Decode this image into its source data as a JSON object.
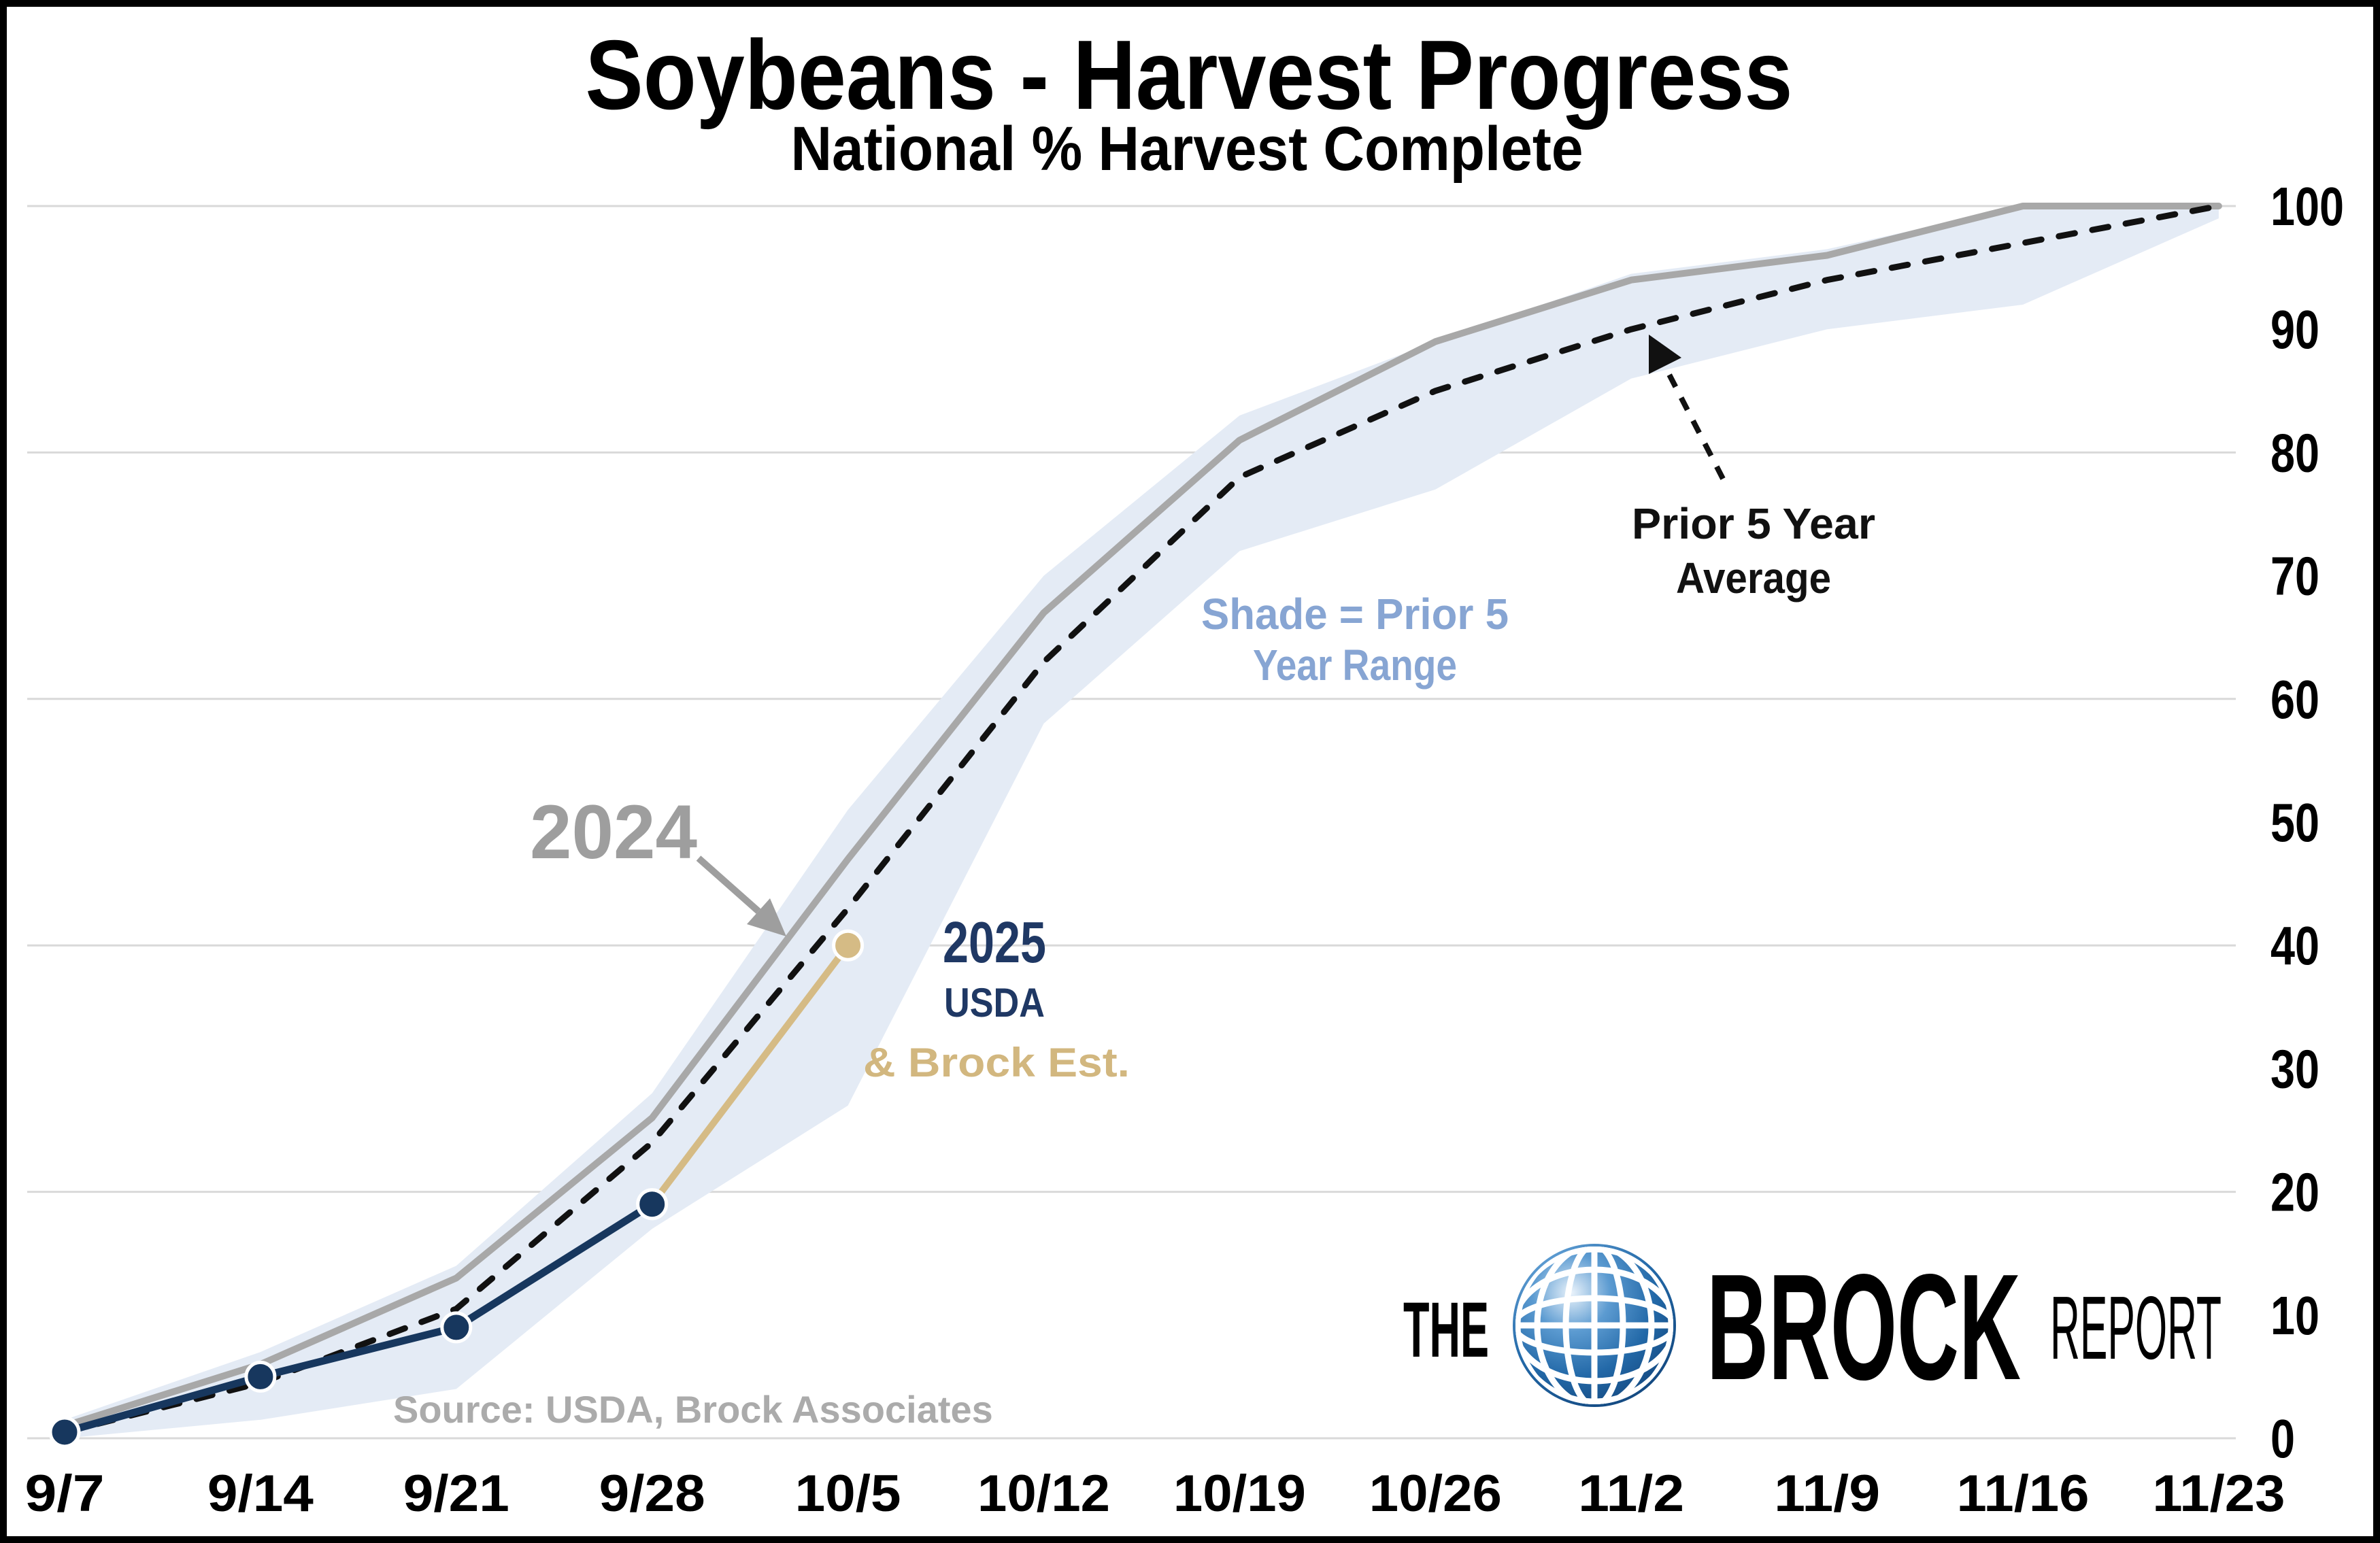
{
  "page": {
    "title": "Soybeans - Harvest Progress",
    "subtitle": "National % Harvest Complete"
  },
  "source_note": "Source: USDA, Brock Associates",
  "colors": {
    "line_2024": "#A8A8A8",
    "line_average": "#111111",
    "line_2025": "#17375E",
    "line_brock_estimate": "#D5BB85",
    "range_band": "#E4EBF5",
    "shade_label": "#87A5D3",
    "annotation_2025_text": "#1F3864",
    "brock_text": "#D2B77F",
    "gridline": "#D9D9D9",
    "source_text": "#ABABAB",
    "logo_globe_blue": "#1C5A95"
  },
  "chart_data": {
    "type": "line",
    "title": "Soybeans - Harvest Progress",
    "subtitle": "National % Harvest Complete",
    "xlabel": "",
    "ylabel": "",
    "y_axis_side": "right",
    "ylim": [
      0,
      100
    ],
    "grid": true,
    "gridline_values": [
      0,
      20,
      40,
      60,
      80,
      100
    ],
    "y_ticks": [
      0,
      10,
      20,
      30,
      40,
      50,
      60,
      70,
      80,
      90,
      100
    ],
    "categories": [
      "9/7",
      "9/14",
      "9/21",
      "9/28",
      "10/5",
      "10/12",
      "10/19",
      "10/26",
      "11/2",
      "11/9",
      "11/16",
      "11/23"
    ],
    "series": [
      {
        "name": "2024",
        "color": "#A8A8A8",
        "width": 10,
        "markers": false,
        "values": [
          1,
          6,
          13,
          26,
          47,
          67,
          81,
          89,
          94,
          96,
          100,
          100
        ]
      },
      {
        "name": "Prior 5 Year Average",
        "color": "#111111",
        "width": 9,
        "dash": "24 26",
        "markers": false,
        "values": [
          0.5,
          4.5,
          10.5,
          24,
          43,
          63,
          78,
          85,
          90,
          94,
          97,
          100
        ]
      },
      {
        "name": "2025 Brock Estimate",
        "color": "#D5BB85",
        "width": 10,
        "markers": true,
        "values": [
          null,
          null,
          null,
          19,
          40,
          null,
          null,
          null,
          null,
          null,
          null,
          null
        ]
      },
      {
        "name": "2025 USDA",
        "color": "#17375E",
        "width": 11,
        "markers": true,
        "values": [
          0.5,
          5,
          9,
          19,
          null,
          null,
          null,
          null,
          null,
          null,
          null,
          null
        ]
      }
    ],
    "range_band": {
      "name": "Prior 5 Year Range",
      "color": "#E4EBF5",
      "high": [
        1.5,
        7,
        14,
        28,
        51,
        70,
        83,
        89,
        94.5,
        96.5,
        100,
        100
      ],
      "low": [
        0,
        1.5,
        4,
        17,
        27,
        58,
        72,
        77,
        86,
        90,
        92,
        99
      ]
    },
    "legend_position": "annotations-on-chart"
  },
  "annotations": {
    "label_2024": "2024",
    "label_2025": "2025",
    "label_usda": "USDA",
    "label_brock_est": "& Brock Est.",
    "shade_line1": "Shade = Prior 5",
    "shade_line2": "Year Range",
    "prior_line1": "Prior 5 Year",
    "prior_line2": "Average"
  },
  "logo": {
    "the": "THE",
    "brock": "BROCK",
    "report": "REPORT"
  }
}
